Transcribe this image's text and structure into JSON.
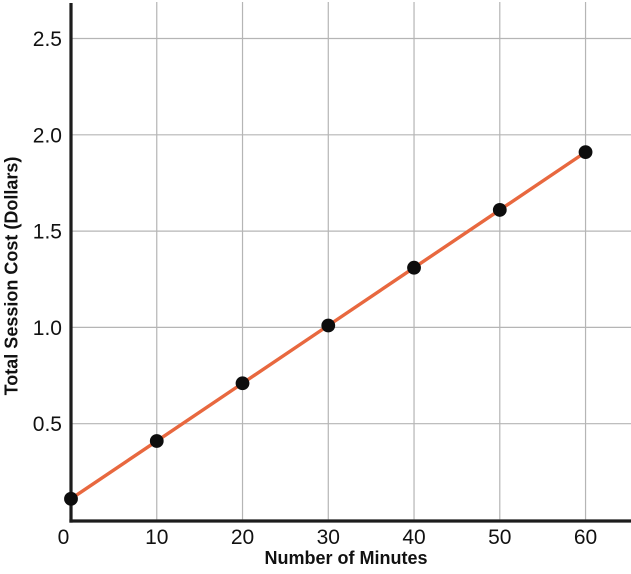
{
  "chart_data": {
    "type": "line",
    "title": "",
    "xlabel": "Number of Minutes",
    "ylabel": "Total Session Cost (Dollars)",
    "x": [
      0,
      10,
      20,
      30,
      40,
      50,
      60
    ],
    "y": [
      0.11,
      0.41,
      0.71,
      1.01,
      1.31,
      1.61,
      1.91
    ],
    "x_ticks": [
      0,
      10,
      20,
      30,
      40,
      50,
      60
    ],
    "x_tick_labels": [
      "0",
      "10",
      "20",
      "30",
      "40",
      "50",
      "60"
    ],
    "y_ticks": [
      0.5,
      1.0,
      1.5,
      2.0,
      2.5
    ],
    "y_tick_labels": [
      "0.5",
      "1.0",
      "1.5",
      "2.0",
      "2.5"
    ],
    "xlim": [
      0,
      65.3
    ],
    "ylim": [
      0,
      2.7
    ],
    "grid": true,
    "legend": false,
    "line_color": "#e8683f",
    "marker_color": "#0d0d0d",
    "axis_color": "#1c1c1c",
    "grid_color": "#b5b5b5",
    "tick_label_color": "#111111"
  }
}
